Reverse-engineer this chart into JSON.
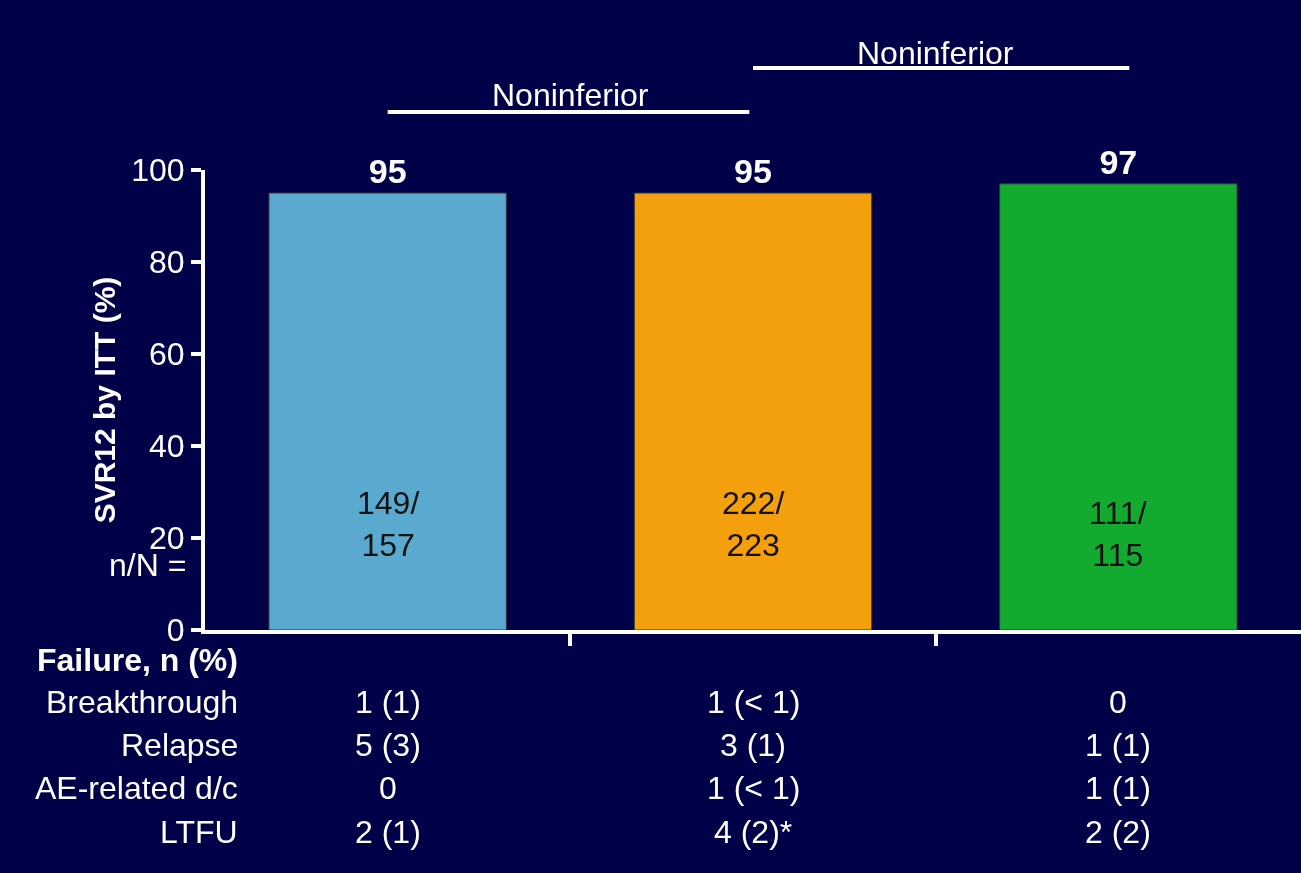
{
  "chart_data": {
    "type": "bar",
    "ylabel": "SVR12 by ITT (%)",
    "categories": [
      null,
      null,
      null
    ],
    "values": [
      95,
      95,
      97
    ],
    "colors": [
      "#5aaad0",
      "#f4a00c",
      "#13ab2f"
    ],
    "data_labels": true,
    "ylim": [
      0,
      100
    ],
    "yticks": [
      0,
      20,
      40,
      60,
      80,
      100
    ],
    "grid": false,
    "annotations": [
      "Noninferior",
      "Noninferior",
      "n/N =",
      "149/\n157",
      "222/\n223",
      "111/\n115",
      "Failure, n (%)",
      "Breakthrough",
      "Relapse",
      "AE-related d/c",
      "LTFU",
      "1 (1)",
      "1 (< 1)",
      "0",
      "5 (3)",
      "3 (1)",
      "1 (1)",
      "0",
      "1 (< 1)",
      "1 (1)",
      "2 (1)",
      "4 (2)*",
      "2 (2)"
    ]
  }
}
